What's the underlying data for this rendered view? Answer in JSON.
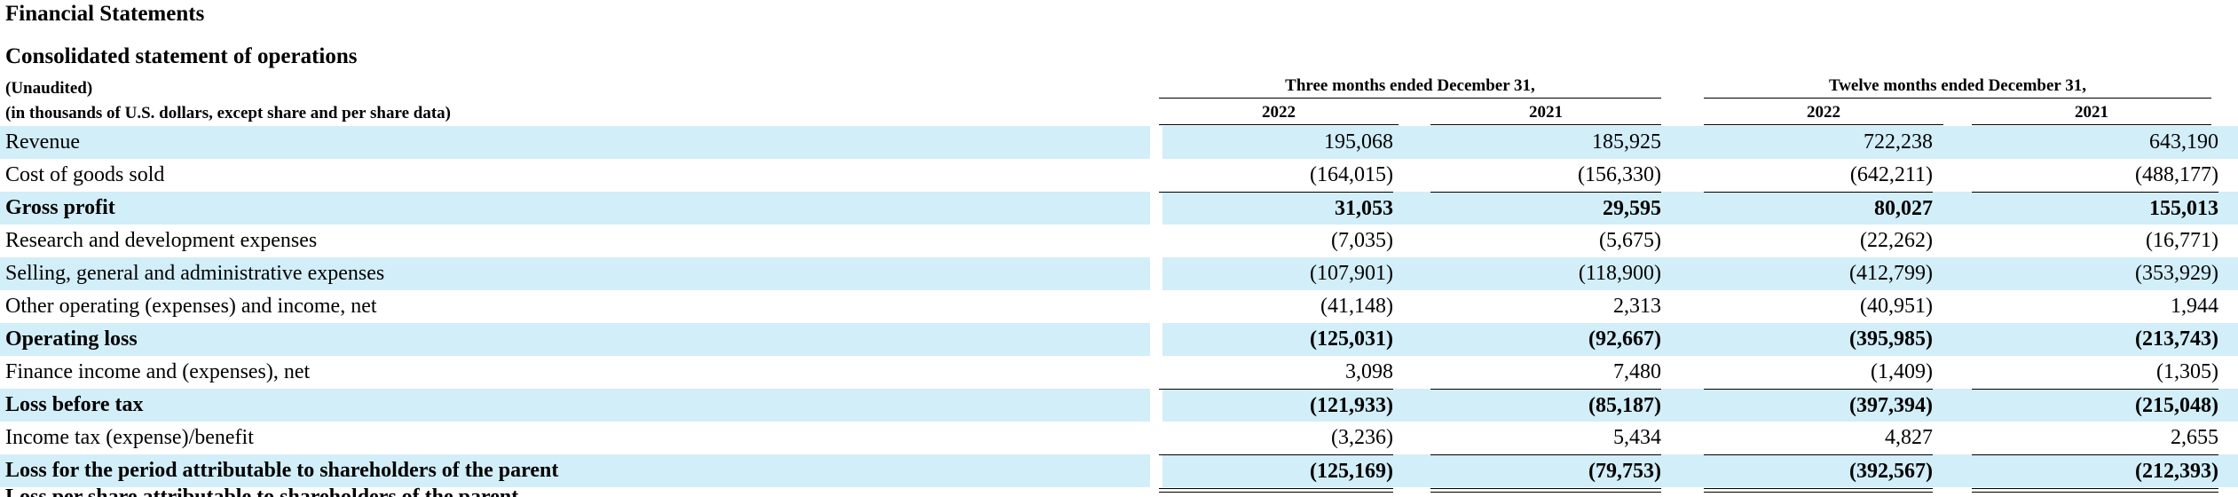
{
  "title": "Financial Statements",
  "subtitle": "Consolidated statement of operations",
  "notes": [
    "(Unaudited)",
    "(in thousands of U.S. dollars, except share and per share data)"
  ],
  "period_headers": [
    "Three months ended December 31,",
    "Twelve months ended December 31,"
  ],
  "year_headers": [
    "2022",
    "2021",
    "2022",
    "2021"
  ],
  "rows": [
    {
      "label": "Revenue",
      "values": [
        "195,068",
        "185,925",
        "722,238",
        "643,190"
      ]
    },
    {
      "label": "Cost of goods sold",
      "values": [
        "(164,015)",
        "(156,330)",
        "(642,211)",
        "(488,177)"
      ]
    },
    {
      "label": "Gross profit",
      "values": [
        "31,053",
        "29,595",
        "80,027",
        "155,013"
      ]
    },
    {
      "label": "Research and development expenses",
      "values": [
        "(7,035)",
        "(5,675)",
        "(22,262)",
        "(16,771)"
      ]
    },
    {
      "label": "Selling, general and administrative expenses",
      "values": [
        "(107,901)",
        "(118,900)",
        "(412,799)",
        "(353,929)"
      ]
    },
    {
      "label": "Other operating (expenses) and income, net",
      "values": [
        "(41,148)",
        "2,313",
        "(40,951)",
        "1,944"
      ]
    },
    {
      "label": "Operating loss",
      "values": [
        "(125,031)",
        "(92,667)",
        "(395,985)",
        "(213,743)"
      ]
    },
    {
      "label": "Finance income and (expenses), net",
      "values": [
        "3,098",
        "7,480",
        "(1,409)",
        "(1,305)"
      ]
    },
    {
      "label": "Loss before tax",
      "values": [
        "(121,933)",
        "(85,187)",
        "(397,394)",
        "(215,048)"
      ]
    },
    {
      "label": "Income tax (expense)/benefit",
      "values": [
        "(3,236)",
        "5,434",
        "4,827",
        "2,655"
      ]
    },
    {
      "label": "Loss for the period attributable to shareholders of the parent",
      "values": [
        "(125,169)",
        "(79,753)",
        "(392,567)",
        "(212,393)"
      ]
    }
  ],
  "partial_row": "Loss per share attributable to shareholders of the parent"
}
